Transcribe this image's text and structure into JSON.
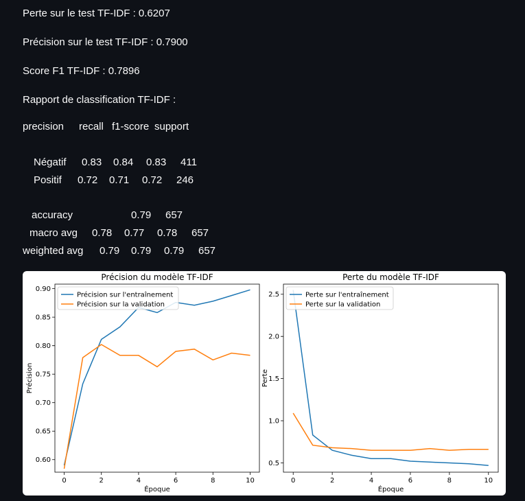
{
  "metrics": {
    "loss": "Perte sur le test TF-IDF : 0.6207",
    "accuracy": "Précision sur le test TF-IDF : 0.7900",
    "f1": "Score F1 TF-IDF : 0.7896",
    "report_title": "Rapport de classification TF-IDF :"
  },
  "report": {
    "header": [
      "precision",
      "recall",
      "f1-score",
      "support"
    ],
    "rows": [
      {
        "label": "Négatif",
        "values": [
          "0.83",
          "0.84",
          "0.83",
          "411"
        ]
      },
      {
        "label": "Positif",
        "values": [
          "0.72",
          "0.71",
          "0.72",
          "246"
        ]
      }
    ],
    "accuracy": {
      "label": "accuracy",
      "values": [
        "0.79",
        "657"
      ]
    },
    "macro": {
      "label": "macro avg",
      "values": [
        "0.78",
        "0.77",
        "0.78",
        "657"
      ]
    },
    "weighted": {
      "label": "weighted avg",
      "values": [
        "0.79",
        "0.79",
        "0.79",
        "657"
      ]
    }
  },
  "chart_data": [
    {
      "type": "line",
      "title": "Précision du modèle TF-IDF",
      "xlabel": "Époque",
      "ylabel": "Précision",
      "xlim": [
        -0.5,
        10.5
      ],
      "ylim": [
        0.578,
        0.908
      ],
      "xticks": [
        0,
        2,
        4,
        6,
        8,
        10
      ],
      "yticks": [
        0.6,
        0.65,
        0.7,
        0.75,
        0.8,
        0.85,
        0.9
      ],
      "ytick_labels": [
        "0.60",
        "0.65",
        "0.70",
        "0.75",
        "0.80",
        "0.85",
        "0.90"
      ],
      "legend": "top-left",
      "x": [
        0,
        1,
        2,
        3,
        4,
        5,
        6,
        7,
        8,
        9,
        10
      ],
      "series": [
        {
          "name": "Précision sur l'entraînement",
          "color": "#1f77b4",
          "values": [
            0.59,
            0.733,
            0.811,
            0.833,
            0.867,
            0.858,
            0.876,
            0.871,
            0.878,
            0.888,
            0.898
          ]
        },
        {
          "name": "Précision sur la validation",
          "color": "#ff7f0e",
          "values": [
            0.584,
            0.779,
            0.802,
            0.783,
            0.783,
            0.763,
            0.79,
            0.794,
            0.775,
            0.787,
            0.783
          ]
        }
      ]
    },
    {
      "type": "line",
      "title": "Perte du modèle TF-IDF",
      "xlabel": "Époque",
      "ylabel": "Perte",
      "xlim": [
        -0.5,
        10.5
      ],
      "ylim": [
        0.39,
        2.62
      ],
      "xticks": [
        0,
        2,
        4,
        6,
        8,
        10
      ],
      "yticks": [
        0.5,
        1.0,
        1.5,
        2.0,
        2.5
      ],
      "ytick_labels": [
        "0.5",
        "1.0",
        "1.5",
        "2.0",
        "2.5"
      ],
      "legend": "top-left",
      "x": [
        0,
        1,
        2,
        3,
        4,
        5,
        6,
        7,
        8,
        9,
        10
      ],
      "series": [
        {
          "name": "Perte sur l'entraînement",
          "color": "#1f77b4",
          "values": [
            2.55,
            0.83,
            0.65,
            0.59,
            0.55,
            0.55,
            0.52,
            0.51,
            0.5,
            0.49,
            0.47
          ]
        },
        {
          "name": "Perte sur la validation",
          "color": "#ff7f0e",
          "values": [
            1.09,
            0.71,
            0.68,
            0.67,
            0.65,
            0.65,
            0.65,
            0.67,
            0.65,
            0.66,
            0.66
          ]
        }
      ]
    }
  ]
}
